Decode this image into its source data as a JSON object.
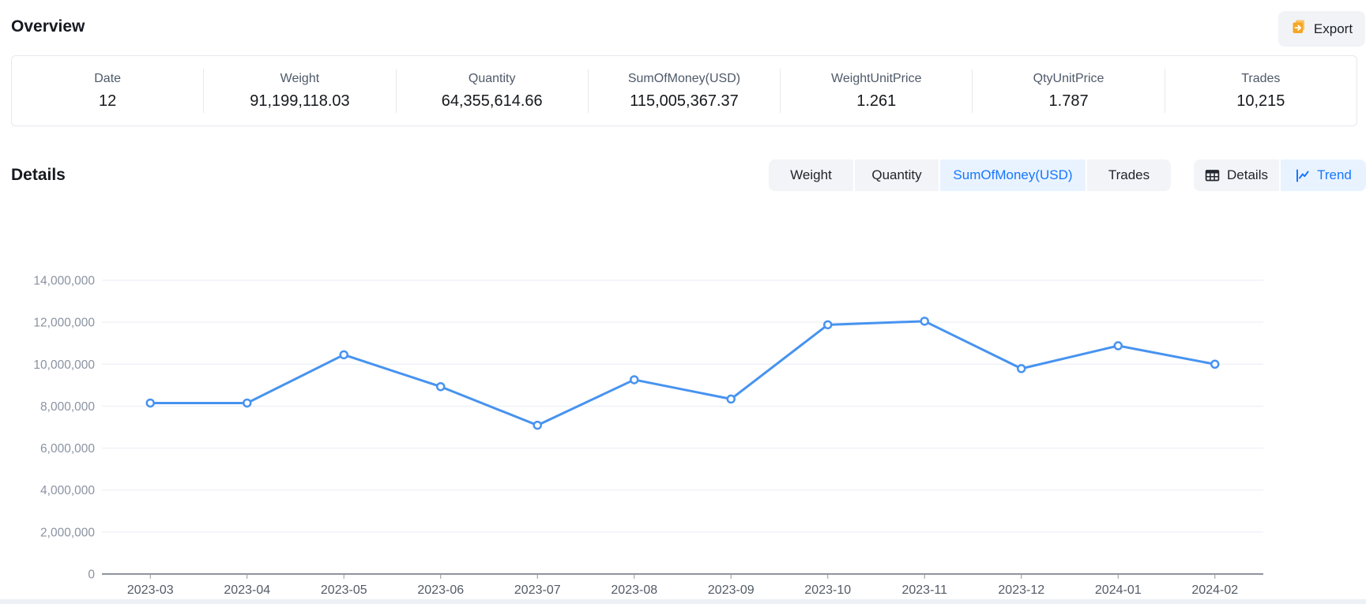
{
  "header": {
    "title": "Overview",
    "export_label": "Export",
    "export_icon": "file-export-icon"
  },
  "stats": [
    {
      "label": "Date",
      "value": "12"
    },
    {
      "label": "Weight",
      "value": "91,199,118.03"
    },
    {
      "label": "Quantity",
      "value": "64,355,614.66"
    },
    {
      "label": "SumOfMoney(USD)",
      "value": "115,005,367.37"
    },
    {
      "label": "WeightUnitPrice",
      "value": "1.261"
    },
    {
      "label": "QtyUnitPrice",
      "value": "1.787"
    },
    {
      "label": "Trades",
      "value": "10,215"
    }
  ],
  "details": {
    "title": "Details",
    "metric_tabs": [
      {
        "label": "Weight",
        "selected": false
      },
      {
        "label": "Quantity",
        "selected": false
      },
      {
        "label": "SumOfMoney(USD)",
        "selected": true
      },
      {
        "label": "Trades",
        "selected": false
      }
    ],
    "view_tabs": [
      {
        "label": "Details",
        "icon": "table-grid-icon",
        "selected": false
      },
      {
        "label": "Trend",
        "icon": "line-chart-icon",
        "selected": true
      }
    ]
  },
  "colors": {
    "accent": "#1677ff",
    "selected_tab_bg": "#e9f3ff",
    "tab_bg": "#f2f4f8",
    "export_icon_orange": "#f5a623",
    "line": "#4793f0"
  },
  "chart_data": {
    "type": "line",
    "title": "",
    "xlabel": "",
    "ylabel": "",
    "x": [
      "2023-03",
      "2023-04",
      "2023-05",
      "2023-06",
      "2023-07",
      "2023-08",
      "2023-09",
      "2023-10",
      "2023-11",
      "2023-12",
      "2024-01",
      "2024-02"
    ],
    "series": [
      {
        "name": "SumOfMoney(USD)",
        "values": [
          8150000,
          8150000,
          10450000,
          8930000,
          7090000,
          9260000,
          8340000,
          11880000,
          12050000,
          9790000,
          10880000,
          10000000
        ]
      }
    ],
    "ylim": [
      0,
      14000000
    ],
    "ytick_interval": 2000000,
    "ytick_labels": [
      "0",
      "2,000,000",
      "4,000,000",
      "6,000,000",
      "8,000,000",
      "10,000,000",
      "12,000,000",
      "14,000,000"
    ],
    "grid": true,
    "legend": "none",
    "line_color": "#4793f0",
    "marker": "hollow-circle"
  }
}
